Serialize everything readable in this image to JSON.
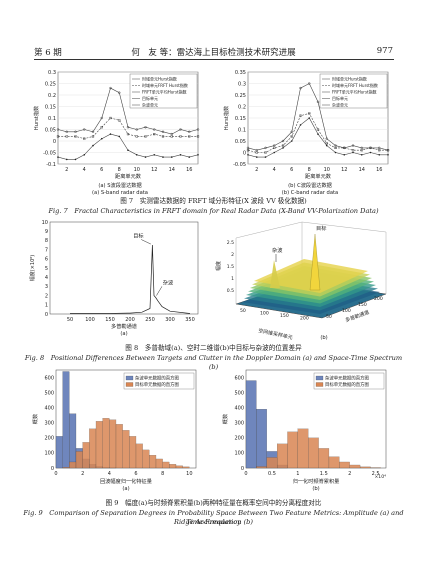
{
  "header": {
    "issue": "第 6 期",
    "authors_title": "何　友 等：雷达海上目标检测技术研究进展",
    "page_number": "977"
  },
  "fig7": {
    "caption_cn": "图 7　实测雷达数据的 FRFT 域分形特征(X 波段 VV 极化数据)",
    "caption_en": "Fig. 7　Fractal Characteristics in FRFT domain for Real Radar Data (X-Band VV-Polarization Data)",
    "a": {
      "xlabel": "距离单元数",
      "ylabel": "Hurst指数",
      "sub_cn": "(a) S波段雷达数据",
      "sub_en": "(a) S-band radar data",
      "xticks": [
        "2",
        "4",
        "6",
        "8",
        "10",
        "12",
        "14",
        "16"
      ],
      "yticks": [
        "0.3",
        "0.25",
        "0.2",
        "0.15",
        "0.1",
        "0.05",
        "0",
        "-0.05",
        "-0.1"
      ],
      "legend": [
        "时域单元Hurst指数",
        "时域单元FRFT Hurst指数",
        "FRFT单元平均Hurst指数",
        "目标单元",
        "杂波单元"
      ]
    },
    "b": {
      "xlabel": "距离单元数",
      "ylabel": "Hurst指数",
      "sub_cn": "(b) C波段雷达数据",
      "sub_en": "(b) C-band radar data",
      "xticks": [
        "2",
        "4",
        "6",
        "8",
        "10",
        "12",
        "14",
        "16"
      ],
      "yticks": [
        "0.35",
        "0.3",
        "0.25",
        "0.2",
        "0.15",
        "0.1",
        "0.05",
        "0",
        "-0.05"
      ],
      "legend": [
        "时域单元Hurst指数",
        "时域单元FRFT Hurst指数",
        "FRFT单元平均Hurst指数",
        "目标单元",
        "杂波单元"
      ]
    }
  },
  "fig8": {
    "caption_cn": "图 8　多普勒域(a)、空时二维谱(b)中目标与杂波的位置差异",
    "caption_en": "Fig. 8　Positional Differences Between Targets and Clutter in the Doppler Domain (a) and Space-Time Spectrum (b)",
    "a": {
      "xlabel": "多普勒通道",
      "ylabel": "幅度(×10⁶)",
      "xticks": [
        "50",
        "100",
        "150",
        "200",
        "250",
        "300",
        "350"
      ],
      "yticks": [
        "10",
        "9",
        "8",
        "7",
        "6",
        "5",
        "4",
        "3",
        "2",
        "1",
        "0"
      ],
      "target_label": "目标",
      "clutter_label": "杂波",
      "panel": "(a)"
    },
    "b": {
      "zlabel": "幅度",
      "target_label": "目标",
      "clutter_label": "杂波",
      "xaxis_label": "空间维采样单元",
      "yaxis_label": "多普勒通道",
      "zticks": [
        "2.5",
        "2",
        "1.5",
        "1",
        "0.5"
      ],
      "xticks": [
        "50",
        "100",
        "150",
        "200"
      ],
      "yticks": [
        "50",
        "100",
        "150",
        "200"
      ],
      "panel": "(b)"
    }
  },
  "fig9": {
    "caption_cn": "图 9　幅度(a)与时频脊累积量(b)两种特征量在概率空间中的分离程度对比",
    "caption_en_1": "Fig. 9　Comparison of Separation Degrees in Probability Space Between Two Feature Metrics: Amplitude (a) and Time-Frequency",
    "caption_en_2": "Ridge Accumulation (b)",
    "a": {
      "xlabel": "回波幅度归一化特征量",
      "ylabel": "概数",
      "xticks": [
        "0",
        "2",
        "4",
        "6",
        "8",
        "10"
      ],
      "yticks": [
        "0",
        "100",
        "200",
        "300",
        "400",
        "500",
        "600"
      ],
      "legend": [
        "杂波单元数据的直方图",
        "目标单元数据的直方图"
      ],
      "panel": "(a)"
    },
    "b": {
      "xlabel": "归一化时频脊累积量",
      "ylabel": "概数",
      "xticks": [
        "0",
        "0.5",
        "1",
        "1.5",
        "2",
        "2.5"
      ],
      "x_exponent": "×10⁴",
      "yticks": [
        "0",
        "100",
        "200",
        "300",
        "400",
        "500",
        "600"
      ],
      "legend": [
        "杂波单元数据的直方图",
        "目标单元数据的直方图"
      ],
      "panel": "(b)"
    }
  },
  "colors": {
    "clutter_hist": "#6f86bd",
    "target_hist": "#d98653",
    "line": "#444444",
    "target_peak": "#222222"
  },
  "chart_data": [
    {
      "type": "line",
      "id": "fig7a",
      "x": [
        1,
        2,
        3,
        4,
        5,
        6,
        7,
        8,
        9,
        10,
        11,
        12,
        13,
        14,
        15,
        16,
        17
      ],
      "series": [
        {
          "name": "时域单元Hurst指数",
          "values": [
            0.05,
            0.04,
            0.04,
            0.05,
            0.04,
            0.1,
            0.23,
            0.21,
            0.06,
            0.05,
            0.06,
            0.05,
            0.04,
            0.03,
            0.05,
            0.04,
            0.05
          ]
        },
        {
          "name": "时域单元FRFT Hurst指数",
          "values": [
            0.02,
            0.02,
            0.02,
            0.01,
            0.02,
            0.06,
            0.1,
            0.09,
            0.03,
            0.02,
            0.02,
            0.03,
            0.02,
            0.02,
            0.02,
            0.02,
            0.02
          ]
        },
        {
          "name": "FRFT单元平均Hurst指数",
          "values": [
            -0.07,
            -0.08,
            -0.08,
            -0.06,
            -0.02,
            0.01,
            0.03,
            0.02,
            -0.04,
            -0.06,
            -0.07,
            -0.06,
            -0.07,
            -0.07,
            -0.06,
            -0.07,
            -0.06
          ]
        }
      ],
      "ylim": [
        -0.1,
        0.3
      ]
    },
    {
      "type": "line",
      "id": "fig7b",
      "x": [
        1,
        2,
        3,
        4,
        5,
        6,
        7,
        8,
        9,
        10,
        11,
        12,
        13,
        14,
        15,
        16,
        17
      ],
      "series": [
        {
          "name": "时域单元Hurst指数",
          "values": [
            0.02,
            0.01,
            0.02,
            0.03,
            0.05,
            0.09,
            0.28,
            0.3,
            0.22,
            0.06,
            0.03,
            0.02,
            0.03,
            0.02,
            0.02,
            0.02,
            0.01
          ]
        },
        {
          "name": "时域单元FRFT Hurst指数",
          "values": [
            0.01,
            0.0,
            0.0,
            0.02,
            0.03,
            0.07,
            0.16,
            0.17,
            0.1,
            0.04,
            0.02,
            0.02,
            0.01,
            0.01,
            0.02,
            0.01,
            0.01
          ]
        },
        {
          "name": "FRFT单元平均Hurst指数",
          "values": [
            -0.01,
            -0.02,
            -0.02,
            0.0,
            0.02,
            0.05,
            0.12,
            0.15,
            0.08,
            0.03,
            0.0,
            -0.01,
            0.0,
            -0.01,
            0.0,
            -0.01,
            -0.01
          ]
        }
      ],
      "ylim": [
        -0.05,
        0.35
      ]
    },
    {
      "type": "line",
      "id": "fig8a",
      "x": [
        50,
        100,
        150,
        200,
        230,
        250,
        256,
        260,
        264,
        270,
        280,
        300,
        350
      ],
      "series": [
        {
          "values": [
            0.05,
            0.05,
            0.05,
            0.1,
            0.2,
            0.6,
            7.5,
            2.0,
            1.8,
            1.4,
            0.8,
            0.3,
            0.05
          ]
        }
      ],
      "ylim": [
        0,
        10
      ]
    },
    {
      "type": "bar",
      "id": "fig9a",
      "bins_center": [
        0.25,
        0.75,
        1.25,
        1.75,
        2.25,
        2.75,
        3.25,
        3.75,
        4.25,
        4.75,
        5.25,
        5.75,
        6.25,
        6.75,
        7.25,
        7.75,
        8.25,
        8.75,
        9.25,
        9.75
      ],
      "series": [
        {
          "name": "杂波单元数据的直方图",
          "values": [
            210,
            640,
            360,
            130,
            60,
            25,
            10,
            4,
            2,
            0,
            0,
            0,
            0,
            0,
            0,
            0,
            0,
            0,
            0,
            0
          ]
        },
        {
          "name": "目标单元数据的直方图",
          "values": [
            0,
            5,
            40,
            110,
            170,
            260,
            310,
            330,
            320,
            290,
            250,
            210,
            160,
            120,
            85,
            60,
            40,
            25,
            15,
            8
          ]
        }
      ],
      "ylim": [
        0,
        650
      ]
    },
    {
      "type": "bar",
      "id": "fig9b",
      "bins_center": [
        0.1,
        0.3,
        0.5,
        0.7,
        0.9,
        1.1,
        1.3,
        1.5,
        1.7,
        1.9,
        2.1,
        2.3,
        2.5
      ],
      "series": [
        {
          "name": "杂波单元数据的直方图",
          "values": [
            580,
            390,
            110,
            20,
            0,
            0,
            0,
            0,
            0,
            0,
            0,
            0,
            0
          ]
        },
        {
          "name": "目标单元数据的直方图",
          "values": [
            0,
            10,
            70,
            160,
            240,
            260,
            200,
            130,
            75,
            40,
            20,
            8,
            3
          ]
        }
      ],
      "ylim": [
        0,
        650
      ]
    }
  ]
}
